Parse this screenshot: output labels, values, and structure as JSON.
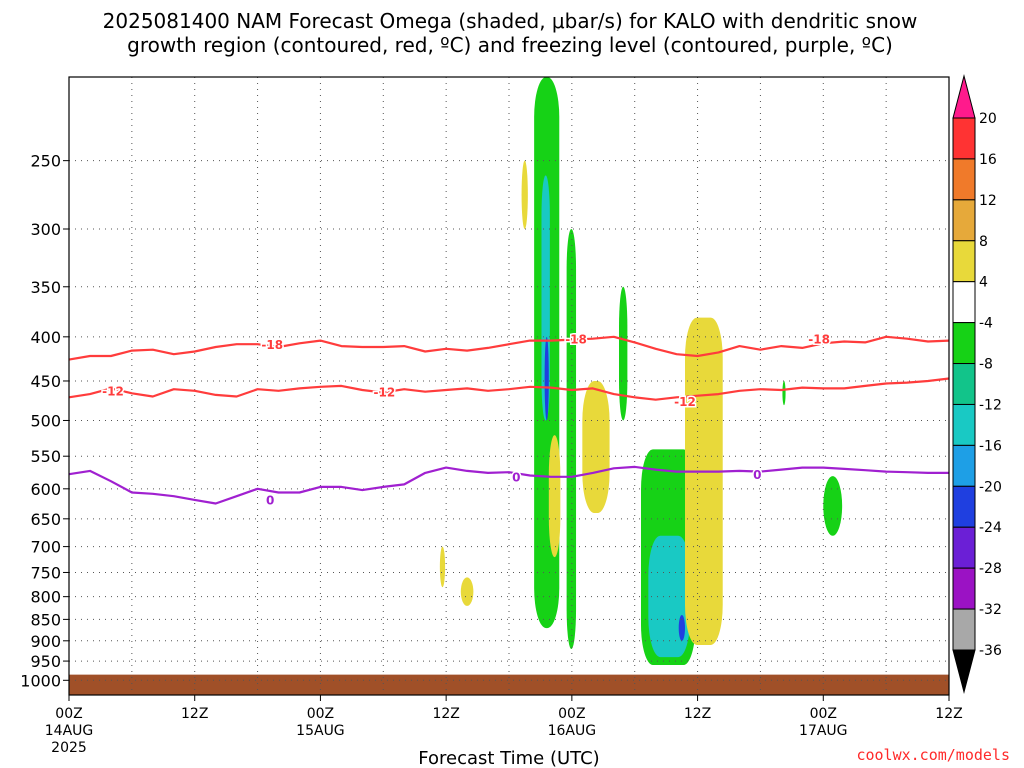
{
  "title": {
    "line1": "2025081400 NAM Forecast Omega (shaded, μbar/s) for KALO with dendritic snow",
    "line2": "growth region (contoured, red, ºC) and freezing level (contoured, purple, ºC)"
  },
  "credit": "coolwx.com/models",
  "chart_data": {
    "type": "heatmap",
    "xlabel": "Forecast Time (UTC)",
    "ylabel": "",
    "x_unit": "hours since 2025-08-14 00Z",
    "xlim": [
      0,
      84
    ],
    "x_ticks": [
      {
        "x": 0,
        "label": "00Z",
        "date": "14AUG",
        "year": "2025"
      },
      {
        "x": 12,
        "label": "12Z",
        "date": "",
        "year": ""
      },
      {
        "x": 24,
        "label": "00Z",
        "date": "15AUG",
        "year": ""
      },
      {
        "x": 36,
        "label": "12Z",
        "date": "",
        "year": ""
      },
      {
        "x": 48,
        "label": "00Z",
        "date": "16AUG",
        "year": ""
      },
      {
        "x": 60,
        "label": "12Z",
        "date": "",
        "year": ""
      },
      {
        "x": 72,
        "label": "00Z",
        "date": "17AUG",
        "year": ""
      },
      {
        "x": 84,
        "label": "12Z",
        "date": "",
        "year": ""
      }
    ],
    "y_unit": "hPa",
    "ylim": [
      1040,
      200
    ],
    "y_scale": "log",
    "y_ticks": [
      250,
      300,
      350,
      400,
      450,
      500,
      550,
      600,
      650,
      700,
      750,
      800,
      850,
      900,
      950,
      1000
    ],
    "grid": true,
    "colorbar": {
      "levels": [
        20,
        16,
        12,
        8,
        4,
        -4,
        -8,
        -12,
        -16,
        -20,
        -24,
        -28,
        -32,
        -36
      ],
      "colors": [
        "#ff1a8c",
        "#ff3333",
        "#f07a2a",
        "#e6a93a",
        "#e8d93a",
        "#ffffff",
        "#16d216",
        "#12c48a",
        "#19c9c4",
        "#1e9fe6",
        "#1f3fe0",
        "#6b1fd6",
        "#9b12c4",
        "#a8a8a8",
        "#000000"
      ]
    },
    "freezing_level": {
      "label": "0",
      "color": "#a020d0",
      "x": [
        0,
        2,
        4,
        6,
        8,
        10,
        12,
        14,
        16,
        18,
        20,
        22,
        24,
        26,
        28,
        30,
        32,
        34,
        36,
        38,
        40,
        42,
        44,
        46,
        48,
        50,
        52,
        54,
        56,
        58,
        60,
        62,
        64,
        66,
        68,
        70,
        72,
        74,
        76,
        78,
        80,
        82,
        84
      ],
      "p": [
        577,
        572,
        588,
        606,
        608,
        612,
        618,
        624,
        612,
        600,
        606,
        606,
        597,
        597,
        602,
        597,
        593,
        575,
        567,
        572,
        575,
        574,
        579,
        581,
        581,
        575,
        568,
        566,
        570,
        573,
        573,
        573,
        572,
        573,
        570,
        567,
        567,
        569,
        571,
        573,
        574,
        575,
        575
      ]
    },
    "dgz_contours": [
      {
        "label": "-12",
        "color": "#ff3c3c",
        "x": [
          0,
          2,
          4,
          6,
          8,
          10,
          12,
          14,
          16,
          18,
          20,
          22,
          24,
          26,
          28,
          30,
          32,
          34,
          36,
          38,
          40,
          42,
          44,
          46,
          48,
          50,
          52,
          54,
          56,
          58,
          60,
          62,
          64,
          66,
          68,
          70,
          72,
          74,
          76,
          78,
          80,
          82,
          84
        ],
        "p": [
          470,
          466,
          459,
          465,
          469,
          460,
          462,
          467,
          469,
          460,
          462,
          459,
          457,
          456,
          461,
          464,
          460,
          463,
          461,
          459,
          462,
          460,
          457,
          458,
          461,
          459,
          466,
          470,
          473,
          470,
          468,
          466,
          462,
          460,
          461,
          458,
          459,
          459,
          456,
          453,
          452,
          450,
          447
        ]
      },
      {
        "label": "-18",
        "color": "#ff3c3c",
        "x": [
          0,
          2,
          4,
          6,
          8,
          10,
          12,
          14,
          16,
          18,
          20,
          22,
          24,
          26,
          28,
          30,
          32,
          34,
          36,
          38,
          40,
          42,
          44,
          46,
          48,
          50,
          52,
          54,
          56,
          58,
          60,
          62,
          64,
          66,
          68,
          70,
          72,
          74,
          76,
          78,
          80,
          82,
          84
        ],
        "p": [
          425,
          421,
          421,
          415,
          414,
          419,
          416,
          411,
          408,
          408,
          411,
          407,
          404,
          410,
          411,
          411,
          410,
          416,
          413,
          415,
          412,
          408,
          404,
          404,
          403,
          402,
          400,
          406,
          413,
          419,
          421,
          417,
          410,
          414,
          410,
          412,
          407,
          405,
          406,
          400,
          402,
          405,
          404
        ]
      }
    ],
    "contour_labels": [
      {
        "text": "-18",
        "x": 19.4,
        "p": 409
      },
      {
        "text": "-18",
        "x": 48.4,
        "p": 403
      },
      {
        "text": "-18",
        "x": 71.6,
        "p": 403
      },
      {
        "text": "-12",
        "x": 4.2,
        "p": 463
      },
      {
        "text": "-12",
        "x": 30.1,
        "p": 464
      },
      {
        "text": "-12",
        "x": 58.8,
        "p": 476
      },
      {
        "text": "0",
        "x": 19.2,
        "p": 619
      },
      {
        "text": "0",
        "x": 42.7,
        "p": 582
      },
      {
        "text": "0",
        "x": 65.7,
        "p": 578
      }
    ],
    "terrain": {
      "p_top": 985,
      "color": "#a05028"
    },
    "omega_regions": [
      {
        "name": "yellow small",
        "color": "#e8d93a",
        "x": [
          43.2,
          43.8
        ],
        "p": [
          250,
          300
        ]
      },
      {
        "name": "yellow tiny",
        "color": "#e8d93a",
        "x": [
          35.4,
          35.9
        ],
        "p": [
          700,
          780
        ]
      },
      {
        "name": "yellow tiny 2",
        "color": "#e8d93a",
        "x": [
          37.4,
          38.6
        ],
        "p": [
          760,
          820
        ]
      },
      {
        "name": "green main col",
        "color": "#16d216",
        "x": [
          44.4,
          46.8
        ],
        "p": [
          200,
          870
        ]
      },
      {
        "name": "cyan main col",
        "color": "#19c9c4",
        "x": [
          45.1,
          45.9
        ],
        "p": [
          260,
          500
        ]
      },
      {
        "name": "blue main col",
        "color": "#1f3fe0",
        "x": [
          45.4,
          45.8
        ],
        "p": [
          400,
          500
        ]
      },
      {
        "name": "orange warm",
        "color": "#f07a2a",
        "x": [
          46.1,
          46.6
        ],
        "p": [
          550,
          700
        ]
      },
      {
        "name": "yellow warm",
        "color": "#e8d93a",
        "x": [
          45.8,
          46.9
        ],
        "p": [
          520,
          720
        ]
      },
      {
        "name": "green col 2",
        "color": "#16d216",
        "x": [
          47.5,
          48.4
        ],
        "p": [
          300,
          920
        ]
      },
      {
        "name": "yellow col 3",
        "color": "#e8d93a",
        "x": [
          49.0,
          51.6
        ],
        "p": [
          450,
          640
        ]
      },
      {
        "name": "green col 3",
        "color": "#16d216",
        "x": [
          52.5,
          53.3
        ],
        "p": [
          350,
          500
        ]
      },
      {
        "name": "green big low",
        "color": "#16d216",
        "x": [
          54.6,
          59.8
        ],
        "p": [
          540,
          960
        ]
      },
      {
        "name": "cyan big low",
        "color": "#19c9c4",
        "x": [
          55.3,
          59.3
        ],
        "p": [
          680,
          940
        ]
      },
      {
        "name": "blue big low",
        "color": "#1f3fe0",
        "x": [
          58.2,
          58.8
        ],
        "p": [
          840,
          900
        ]
      },
      {
        "name": "yellow big col",
        "color": "#e8d93a",
        "x": [
          58.8,
          62.4
        ],
        "p": [
          380,
          910
        ]
      },
      {
        "name": "green right small",
        "color": "#16d216",
        "x": [
          68.1,
          68.4
        ],
        "p": [
          450,
          480
        ]
      },
      {
        "name": "green right col",
        "color": "#16d216",
        "x": [
          72.0,
          73.8
        ],
        "p": [
          580,
          680
        ]
      }
    ]
  }
}
